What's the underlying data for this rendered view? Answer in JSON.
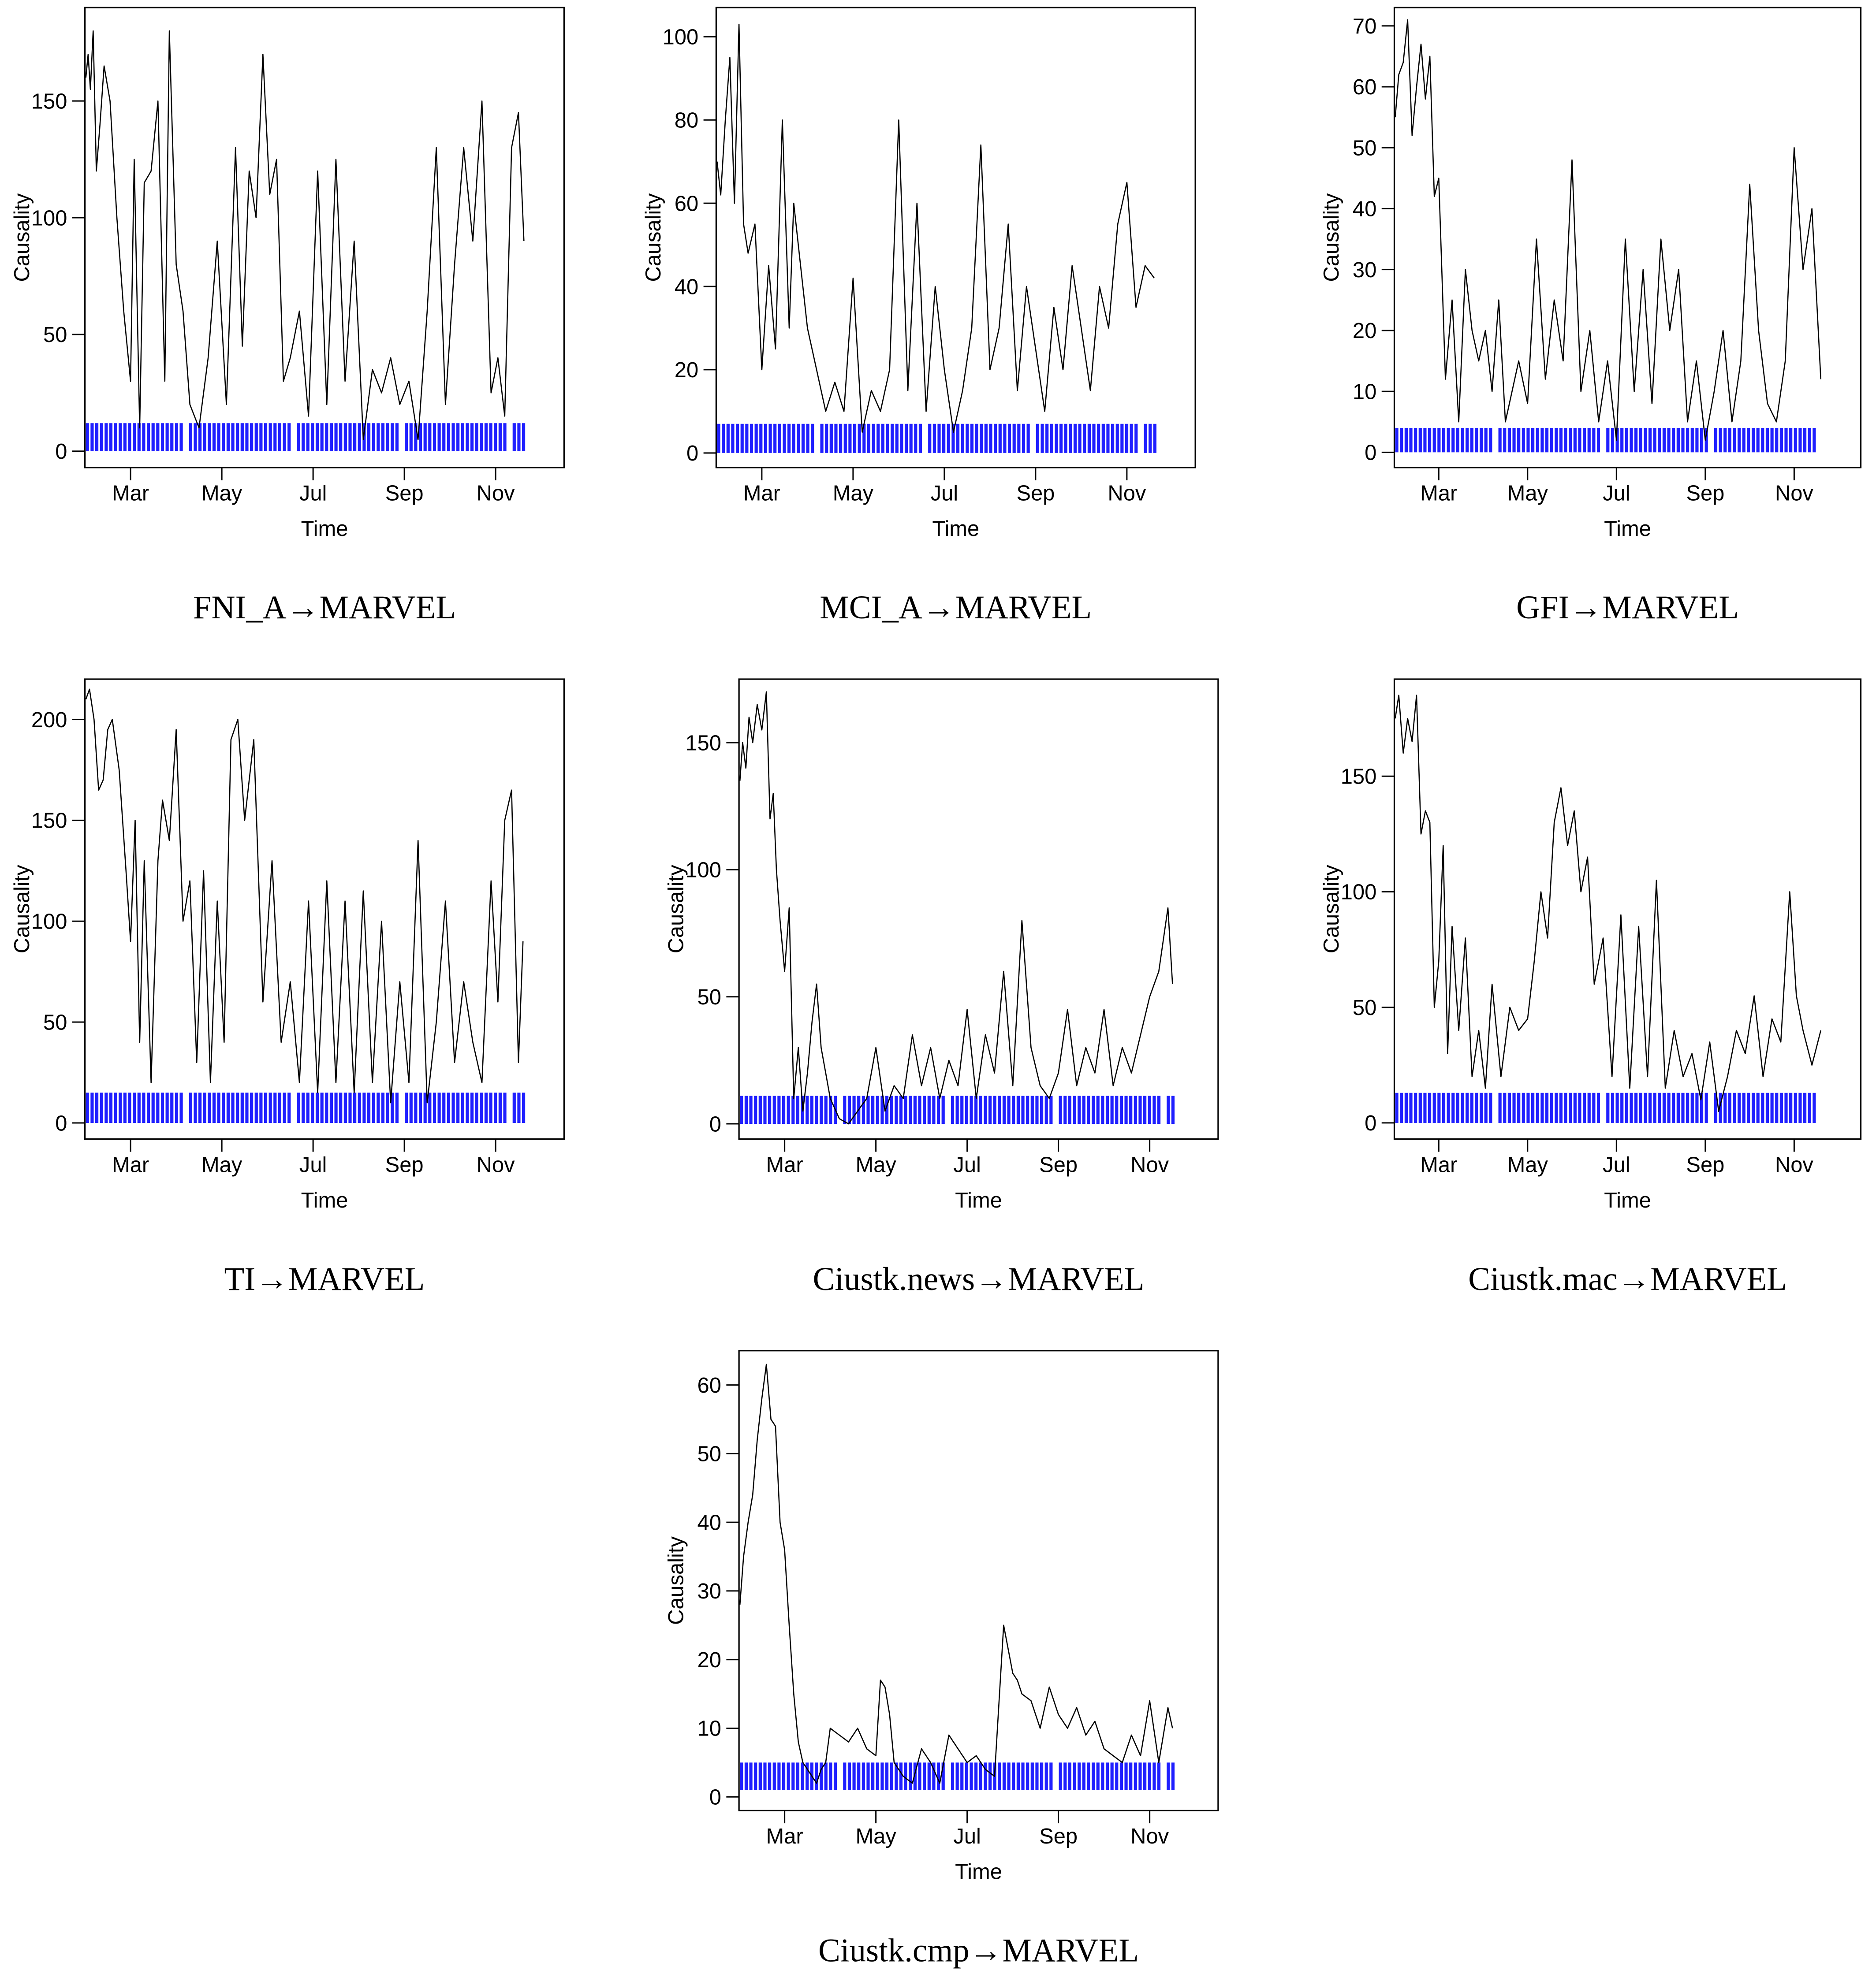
{
  "figure": {
    "ylabel": "Causality",
    "xlabel": "Time"
  },
  "chart_data": [
    {
      "type": "line",
      "title": "FNI_A→MARVEL",
      "xlabel": "Time",
      "ylabel": "Causality",
      "xlim": [
        0,
        10.5
      ],
      "ylim": [
        -7,
        190
      ],
      "yticks": [
        0,
        50,
        100,
        150
      ],
      "xticks": [
        {
          "label": "Mar",
          "x": 1
        },
        {
          "label": "May",
          "x": 3
        },
        {
          "label": "Jul",
          "x": 5
        },
        {
          "label": "Sep",
          "x": 7
        },
        {
          "label": "Nov",
          "x": 9
        }
      ],
      "band": {
        "y0": 0,
        "y1": 12,
        "color": "#1f1fff"
      },
      "x": [
        0.02,
        0.07,
        0.12,
        0.18,
        0.25,
        0.33,
        0.42,
        0.55,
        0.7,
        0.85,
        1.0,
        1.08,
        1.2,
        1.3,
        1.45,
        1.6,
        1.75,
        1.85,
        2.0,
        2.15,
        2.3,
        2.5,
        2.7,
        2.9,
        3.1,
        3.3,
        3.45,
        3.6,
        3.75,
        3.9,
        4.05,
        4.2,
        4.35,
        4.5,
        4.7,
        4.9,
        5.1,
        5.3,
        5.5,
        5.7,
        5.9,
        6.1,
        6.3,
        6.5,
        6.7,
        6.9,
        7.1,
        7.3,
        7.5,
        7.7,
        7.9,
        8.1,
        8.3,
        8.5,
        8.7,
        8.9,
        9.05,
        9.2,
        9.35,
        9.5,
        9.62
      ],
      "y": [
        160,
        170,
        155,
        180,
        120,
        140,
        165,
        150,
        100,
        60,
        30,
        125,
        10,
        115,
        120,
        150,
        30,
        180,
        80,
        60,
        20,
        10,
        40,
        90,
        20,
        130,
        45,
        120,
        100,
        170,
        110,
        125,
        30,
        40,
        60,
        15,
        120,
        20,
        125,
        30,
        90,
        5,
        35,
        25,
        40,
        20,
        30,
        5,
        60,
        130,
        20,
        80,
        130,
        90,
        150,
        25,
        40,
        15,
        130,
        145,
        90
      ]
    },
    {
      "type": "line",
      "title": "MCI_A→MARVEL",
      "xlabel": "Time",
      "ylabel": "Causality",
      "xlim": [
        0,
        10.5
      ],
      "ylim": [
        -3.5,
        107
      ],
      "yticks": [
        0,
        20,
        40,
        60,
        80,
        100
      ],
      "xticks": [
        {
          "label": "Mar",
          "x": 1
        },
        {
          "label": "May",
          "x": 3
        },
        {
          "label": "Jul",
          "x": 5
        },
        {
          "label": "Sep",
          "x": 7
        },
        {
          "label": "Nov",
          "x": 9
        }
      ],
      "band": {
        "y0": 0,
        "y1": 7,
        "color": "#1f1fff"
      },
      "x": [
        0.02,
        0.1,
        0.2,
        0.3,
        0.4,
        0.5,
        0.6,
        0.7,
        0.85,
        1.0,
        1.15,
        1.3,
        1.45,
        1.6,
        1.7,
        1.85,
        2.0,
        2.2,
        2.4,
        2.6,
        2.8,
        3.0,
        3.2,
        3.4,
        3.6,
        3.8,
        4.0,
        4.2,
        4.4,
        4.6,
        4.8,
        5.0,
        5.2,
        5.4,
        5.6,
        5.8,
        6.0,
        6.2,
        6.4,
        6.6,
        6.8,
        7.0,
        7.2,
        7.4,
        7.6,
        7.8,
        8.0,
        8.2,
        8.4,
        8.6,
        8.8,
        9.0,
        9.2,
        9.4,
        9.6
      ],
      "y": [
        70,
        62,
        80,
        95,
        60,
        103,
        55,
        48,
        55,
        20,
        45,
        25,
        80,
        30,
        60,
        45,
        30,
        20,
        10,
        17,
        10,
        42,
        5,
        15,
        10,
        20,
        80,
        15,
        60,
        10,
        40,
        20,
        5,
        15,
        30,
        74,
        20,
        30,
        55,
        15,
        40,
        25,
        10,
        35,
        20,
        45,
        30,
        15,
        40,
        30,
        55,
        65,
        35,
        45,
        42
      ]
    },
    {
      "type": "line",
      "title": "GFI→MARVEL",
      "xlabel": "Time",
      "ylabel": "Causality",
      "xlim": [
        0,
        10.5
      ],
      "ylim": [
        -2.5,
        73
      ],
      "yticks": [
        0,
        10,
        20,
        30,
        40,
        50,
        60,
        70
      ],
      "xticks": [
        {
          "label": "Mar",
          "x": 1
        },
        {
          "label": "May",
          "x": 3
        },
        {
          "label": "Jul",
          "x": 5
        },
        {
          "label": "Sep",
          "x": 7
        },
        {
          "label": "Nov",
          "x": 9
        }
      ],
      "band": {
        "y0": 0,
        "y1": 4,
        "color": "#1f1fff"
      },
      "x": [
        0.02,
        0.1,
        0.2,
        0.3,
        0.4,
        0.5,
        0.6,
        0.7,
        0.8,
        0.9,
        1.0,
        1.15,
        1.3,
        1.45,
        1.6,
        1.75,
        1.9,
        2.05,
        2.2,
        2.35,
        2.5,
        2.65,
        2.8,
        3.0,
        3.2,
        3.4,
        3.6,
        3.8,
        4.0,
        4.2,
        4.4,
        4.6,
        4.8,
        5.0,
        5.2,
        5.4,
        5.6,
        5.8,
        6.0,
        6.2,
        6.4,
        6.6,
        6.8,
        7.0,
        7.2,
        7.4,
        7.6,
        7.8,
        8.0,
        8.2,
        8.4,
        8.6,
        8.8,
        9.0,
        9.2,
        9.4,
        9.6
      ],
      "y": [
        55,
        62,
        64,
        71,
        52,
        60,
        67,
        58,
        65,
        42,
        45,
        12,
        25,
        5,
        30,
        20,
        15,
        20,
        10,
        25,
        5,
        10,
        15,
        8,
        35,
        12,
        25,
        15,
        48,
        10,
        20,
        5,
        15,
        2,
        35,
        10,
        30,
        8,
        35,
        20,
        30,
        5,
        15,
        2,
        10,
        20,
        5,
        15,
        44,
        20,
        8,
        5,
        15,
        50,
        30,
        40,
        12
      ]
    },
    {
      "type": "line",
      "title": "TI→MARVEL",
      "xlabel": "Time",
      "ylabel": "Causality",
      "xlim": [
        0,
        10.5
      ],
      "ylim": [
        -8,
        220
      ],
      "yticks": [
        0,
        50,
        100,
        150,
        200
      ],
      "xticks": [
        {
          "label": "Mar",
          "x": 1
        },
        {
          "label": "May",
          "x": 3
        },
        {
          "label": "Jul",
          "x": 5
        },
        {
          "label": "Sep",
          "x": 7
        },
        {
          "label": "Nov",
          "x": 9
        }
      ],
      "band": {
        "y0": 0,
        "y1": 15,
        "color": "#1f1fff"
      },
      "x": [
        0.02,
        0.1,
        0.2,
        0.3,
        0.4,
        0.5,
        0.6,
        0.75,
        0.9,
        1.0,
        1.1,
        1.2,
        1.3,
        1.45,
        1.6,
        1.7,
        1.85,
        2.0,
        2.15,
        2.3,
        2.45,
        2.6,
        2.75,
        2.9,
        3.05,
        3.2,
        3.35,
        3.5,
        3.7,
        3.9,
        4.1,
        4.3,
        4.5,
        4.7,
        4.9,
        5.1,
        5.3,
        5.5,
        5.7,
        5.9,
        6.1,
        6.3,
        6.5,
        6.7,
        6.9,
        7.1,
        7.3,
        7.5,
        7.7,
        7.9,
        8.1,
        8.3,
        8.5,
        8.7,
        8.9,
        9.05,
        9.2,
        9.35,
        9.5,
        9.6
      ],
      "y": [
        210,
        215,
        200,
        165,
        170,
        195,
        200,
        175,
        125,
        90,
        150,
        40,
        130,
        20,
        130,
        160,
        140,
        195,
        100,
        120,
        30,
        125,
        20,
        110,
        40,
        190,
        200,
        150,
        190,
        60,
        130,
        40,
        70,
        20,
        110,
        15,
        120,
        20,
        110,
        15,
        115,
        20,
        100,
        10,
        70,
        20,
        140,
        10,
        50,
        110,
        30,
        70,
        40,
        20,
        120,
        60,
        150,
        165,
        30,
        90
      ]
    },
    {
      "type": "line",
      "title": "Ciustk.news→MARVEL",
      "xlabel": "Time",
      "ylabel": "Causality",
      "xlim": [
        0,
        10.5
      ],
      "ylim": [
        -6,
        175
      ],
      "yticks": [
        0,
        50,
        100,
        150
      ],
      "xticks": [
        {
          "label": "Mar",
          "x": 1
        },
        {
          "label": "May",
          "x": 3
        },
        {
          "label": "Jul",
          "x": 5
        },
        {
          "label": "Sep",
          "x": 7
        },
        {
          "label": "Nov",
          "x": 9
        }
      ],
      "band": {
        "y0": 0,
        "y1": 11,
        "color": "#1f1fff"
      },
      "x": [
        0.02,
        0.08,
        0.15,
        0.22,
        0.3,
        0.4,
        0.5,
        0.6,
        0.68,
        0.75,
        0.82,
        0.9,
        1.0,
        1.1,
        1.2,
        1.3,
        1.4,
        1.5,
        1.6,
        1.7,
        1.8,
        1.9,
        2.0,
        2.2,
        2.4,
        2.6,
        2.8,
        3.0,
        3.2,
        3.4,
        3.6,
        3.8,
        4.0,
        4.2,
        4.4,
        4.6,
        4.8,
        5.0,
        5.2,
        5.4,
        5.6,
        5.8,
        6.0,
        6.2,
        6.4,
        6.6,
        6.8,
        7.0,
        7.2,
        7.4,
        7.6,
        7.8,
        8.0,
        8.2,
        8.4,
        8.6,
        8.8,
        9.0,
        9.2,
        9.4,
        9.5
      ],
      "y": [
        135,
        150,
        140,
        160,
        150,
        165,
        155,
        170,
        120,
        130,
        100,
        80,
        60,
        85,
        10,
        30,
        5,
        20,
        40,
        55,
        30,
        20,
        10,
        2,
        0,
        5,
        10,
        30,
        5,
        15,
        10,
        35,
        15,
        30,
        10,
        25,
        15,
        45,
        10,
        35,
        20,
        60,
        15,
        80,
        30,
        15,
        10,
        20,
        45,
        15,
        30,
        20,
        45,
        15,
        30,
        20,
        35,
        50,
        60,
        85,
        55
      ]
    },
    {
      "type": "line",
      "title": "Ciustk.mac→MARVEL",
      "xlabel": "Time",
      "ylabel": "Causality",
      "xlim": [
        0,
        10.5
      ],
      "ylim": [
        -7,
        192
      ],
      "yticks": [
        0,
        50,
        100,
        150
      ],
      "xticks": [
        {
          "label": "Mar",
          "x": 1
        },
        {
          "label": "May",
          "x": 3
        },
        {
          "label": "Jul",
          "x": 5
        },
        {
          "label": "Sep",
          "x": 7
        },
        {
          "label": "Nov",
          "x": 9
        }
      ],
      "band": {
        "y0": 0,
        "y1": 13,
        "color": "#1f1fff"
      },
      "x": [
        0.02,
        0.1,
        0.2,
        0.3,
        0.4,
        0.5,
        0.6,
        0.7,
        0.8,
        0.9,
        1.0,
        1.1,
        1.2,
        1.3,
        1.45,
        1.6,
        1.75,
        1.9,
        2.05,
        2.2,
        2.4,
        2.6,
        2.8,
        3.0,
        3.15,
        3.3,
        3.45,
        3.6,
        3.75,
        3.9,
        4.05,
        4.2,
        4.35,
        4.5,
        4.7,
        4.9,
        5.1,
        5.3,
        5.5,
        5.7,
        5.9,
        6.1,
        6.3,
        6.5,
        6.7,
        6.9,
        7.1,
        7.3,
        7.5,
        7.7,
        7.9,
        8.1,
        8.3,
        8.5,
        8.7,
        8.9,
        9.05,
        9.2,
        9.4,
        9.6
      ],
      "y": [
        175,
        185,
        160,
        175,
        165,
        185,
        125,
        135,
        130,
        50,
        70,
        120,
        30,
        85,
        40,
        80,
        20,
        40,
        15,
        60,
        20,
        50,
        40,
        45,
        70,
        100,
        80,
        130,
        145,
        120,
        135,
        100,
        115,
        60,
        80,
        20,
        90,
        15,
        85,
        20,
        105,
        15,
        40,
        20,
        30,
        10,
        35,
        5,
        20,
        40,
        30,
        55,
        20,
        45,
        35,
        100,
        55,
        40,
        25,
        40
      ]
    },
    {
      "type": "line",
      "title": "Ciustk.cmp→MARVEL",
      "xlabel": "Time",
      "ylabel": "Causality",
      "xlim": [
        0,
        10.5
      ],
      "ylim": [
        -2,
        65
      ],
      "yticks": [
        0,
        10,
        20,
        30,
        40,
        50,
        60
      ],
      "xticks": [
        {
          "label": "Mar",
          "x": 1
        },
        {
          "label": "May",
          "x": 3
        },
        {
          "label": "Jul",
          "x": 5
        },
        {
          "label": "Sep",
          "x": 7
        },
        {
          "label": "Nov",
          "x": 9
        }
      ],
      "band": {
        "y0": 1,
        "y1": 5,
        "color": "#1f1fff"
      },
      "x": [
        0.02,
        0.1,
        0.2,
        0.3,
        0.4,
        0.5,
        0.6,
        0.7,
        0.8,
        0.9,
        1.0,
        1.1,
        1.2,
        1.3,
        1.4,
        1.5,
        1.6,
        1.7,
        1.8,
        1.9,
        2.0,
        2.2,
        2.4,
        2.6,
        2.8,
        3.0,
        3.1,
        3.2,
        3.3,
        3.4,
        3.6,
        3.8,
        4.0,
        4.2,
        4.4,
        4.6,
        4.8,
        5.0,
        5.2,
        5.4,
        5.6,
        5.8,
        6.0,
        6.1,
        6.2,
        6.4,
        6.6,
        6.8,
        7.0,
        7.2,
        7.4,
        7.6,
        7.8,
        8.0,
        8.2,
        8.4,
        8.6,
        8.8,
        9.0,
        9.2,
        9.4,
        9.5
      ],
      "y": [
        28,
        35,
        40,
        44,
        52,
        58,
        63,
        55,
        54,
        40,
        36,
        25,
        15,
        8,
        5,
        4,
        3,
        2,
        4,
        5,
        10,
        9,
        8,
        10,
        7,
        6,
        17,
        16,
        12,
        5,
        3,
        2,
        7,
        5,
        2,
        9,
        7,
        5,
        6,
        4,
        3,
        25,
        18,
        17,
        15,
        14,
        10,
        16,
        12,
        10,
        13,
        9,
        11,
        7,
        6,
        5,
        9,
        6,
        14,
        5,
        13,
        10
      ]
    }
  ]
}
